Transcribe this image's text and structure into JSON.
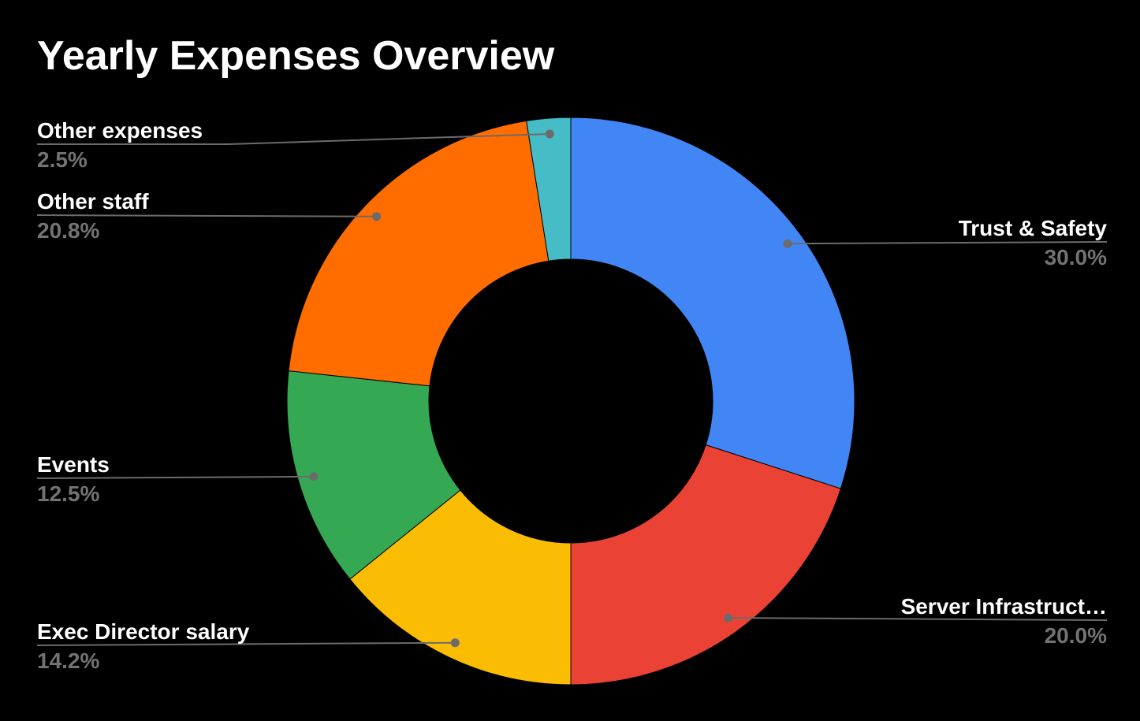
{
  "page": {
    "background_color": "#000000"
  },
  "chart_data": {
    "type": "pie",
    "title": "Yearly Expenses Overview",
    "donut_hole_ratio": 0.5,
    "legend_position": "labeled-callouts",
    "grid": false,
    "title_color": "#ffffff",
    "label_color": "#ffffff",
    "percent_color": "#737373",
    "leader_line_color": "#6b6b6b",
    "background_color": "#000000",
    "slices": [
      {
        "label": "Trust & Safety",
        "percent_label": "30.0%",
        "value": 30.0,
        "color": "#4285F4"
      },
      {
        "label": "Server Infrastruct…",
        "percent_label": "20.0%",
        "value": 20.0,
        "color": "#EA4335"
      },
      {
        "label": "Exec Director salary",
        "percent_label": "14.2%",
        "value": 14.2,
        "color": "#FBBC04"
      },
      {
        "label": "Events",
        "percent_label": "12.5%",
        "value": 12.5,
        "color": "#34A853"
      },
      {
        "label": "Other staff",
        "percent_label": "20.8%",
        "value": 20.8,
        "color": "#FF6D01"
      },
      {
        "label": "Other expenses",
        "percent_label": "2.5%",
        "value": 2.5,
        "color": "#46BDC6"
      }
    ]
  }
}
